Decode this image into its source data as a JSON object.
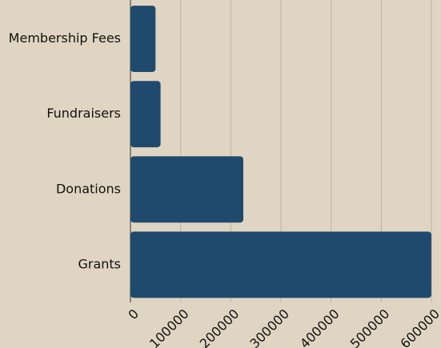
{
  "chart_data": {
    "type": "bar",
    "orientation": "horizontal",
    "categories": [
      "Membership Fees",
      "Fundraisers",
      "Donations",
      "Grants"
    ],
    "values": [
      50000,
      60000,
      225000,
      600000
    ],
    "color": "#1f4a6e",
    "xlim": [
      0,
      600000
    ],
    "xticks": [
      0,
      100000,
      200000,
      300000,
      400000,
      500000,
      600000
    ],
    "grid": true
  }
}
